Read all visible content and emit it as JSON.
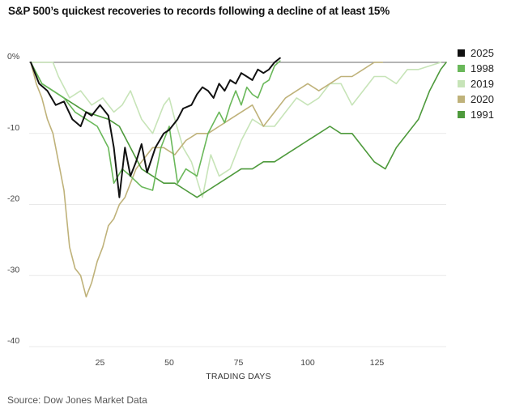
{
  "chart_data": {
    "type": "line",
    "title": "S&P 500’s quickest recoveries to records following a decline of at least 15%",
    "source": "Source: Dow Jones Market Data",
    "xlabel": "TRADING DAYS",
    "ylabel": "",
    "xlim": [
      0,
      150
    ],
    "ylim": [
      -40,
      0
    ],
    "x_ticks": [
      25,
      50,
      75,
      100,
      125
    ],
    "x_tick_labels": [
      "25",
      "50",
      "75",
      "100",
      "125"
    ],
    "y_ticks": [
      0,
      -10,
      -20,
      -30,
      -40
    ],
    "y_tick_labels": [
      "0%",
      "-10",
      "-20",
      "-30",
      "-40"
    ],
    "grid": true,
    "legend": "right",
    "series": [
      {
        "name": "2025",
        "color": "#111111",
        "x": [
          0,
          3,
          6,
          9,
          12,
          15,
          18,
          20,
          22,
          25,
          28,
          30,
          32,
          34,
          36,
          38,
          40,
          42,
          45,
          48,
          50,
          53,
          55,
          58,
          60,
          62,
          64,
          66,
          68,
          70,
          72,
          74,
          76,
          78,
          80,
          82,
          84,
          86,
          88,
          90
        ],
        "y": [
          0,
          -3,
          -4,
          -6,
          -5.5,
          -8,
          -9,
          -7,
          -7.5,
          -6,
          -7.5,
          -12,
          -19,
          -12,
          -16,
          -14,
          -11.5,
          -15.5,
          -12,
          -10,
          -9.5,
          -8,
          -6.5,
          -6,
          -4.5,
          -3.5,
          -4,
          -5,
          -3,
          -4,
          -2.5,
          -3,
          -1.5,
          -2,
          -2.5,
          -1,
          -1.5,
          -1,
          0,
          0.6
        ]
      },
      {
        "name": "1998",
        "color": "#6ab85a",
        "x": [
          0,
          4,
          8,
          12,
          16,
          20,
          24,
          28,
          30,
          33,
          36,
          40,
          44,
          47,
          50,
          53,
          56,
          60,
          64,
          68,
          70,
          72,
          74,
          76,
          78,
          80,
          82,
          84,
          86,
          88,
          90
        ],
        "y": [
          0,
          -3,
          -4,
          -5,
          -7,
          -8,
          -9,
          -12,
          -17,
          -15,
          -16,
          -17.5,
          -18,
          -12,
          -9,
          -17,
          -15,
          -16,
          -10,
          -7,
          -8.5,
          -6,
          -4,
          -6,
          -3.5,
          -4.5,
          -5,
          -3,
          -2.5,
          -0.5,
          0.2
        ]
      },
      {
        "name": "2019",
        "color": "#c7e4b8",
        "x": [
          0,
          4,
          8,
          10,
          14,
          18,
          22,
          26,
          30,
          33,
          36,
          40,
          44,
          48,
          50,
          52,
          55,
          58,
          62,
          65,
          68,
          72,
          76,
          80,
          84,
          88,
          92,
          96,
          100,
          104,
          108,
          112,
          116,
          120,
          124,
          128,
          132,
          136,
          140,
          144,
          148
        ],
        "y": [
          0,
          0,
          0,
          -2,
          -5,
          -4,
          -6,
          -5,
          -7,
          -6,
          -4,
          -8,
          -10,
          -6,
          -5,
          -8,
          -12,
          -14,
          -19,
          -13,
          -16,
          -15,
          -11,
          -8,
          -9,
          -9,
          -7,
          -5,
          -6,
          -5,
          -3,
          -3,
          -6,
          -4,
          -2,
          -2,
          -3,
          -1,
          -1,
          -0.5,
          0
        ]
      },
      {
        "name": "2020",
        "color": "#bfb27a",
        "x": [
          0,
          2,
          4,
          6,
          8,
          10,
          12,
          14,
          16,
          18,
          20,
          22,
          24,
          26,
          28,
          30,
          32,
          34,
          36,
          38,
          40,
          44,
          48,
          52,
          56,
          60,
          64,
          68,
          72,
          76,
          80,
          84,
          88,
          92,
          96,
          100,
          104,
          108,
          112,
          116,
          120,
          124,
          127
        ],
        "y": [
          0,
          -3,
          -5,
          -8,
          -10,
          -14,
          -18,
          -26,
          -29,
          -30,
          -33,
          -31,
          -28,
          -26,
          -23,
          -22,
          -20,
          -19,
          -17,
          -15,
          -14,
          -12,
          -12,
          -13,
          -11,
          -10,
          -10,
          -9,
          -8,
          -7,
          -6,
          -9,
          -7,
          -5,
          -4,
          -3,
          -4,
          -3,
          -2,
          -2,
          -1,
          0,
          0
        ]
      },
      {
        "name": "1991",
        "color": "#4e9a3c",
        "x": [
          0,
          4,
          8,
          12,
          16,
          20,
          24,
          28,
          32,
          36,
          40,
          44,
          48,
          52,
          56,
          60,
          64,
          68,
          72,
          76,
          80,
          84,
          88,
          92,
          96,
          100,
          104,
          108,
          112,
          116,
          120,
          124,
          128,
          132,
          136,
          140,
          144,
          148,
          150
        ],
        "y": [
          0,
          -3,
          -4,
          -5,
          -6,
          -7,
          -7.5,
          -8,
          -9,
          -12,
          -15,
          -16,
          -17,
          -17,
          -18,
          -19,
          -18,
          -17,
          -16,
          -15,
          -15,
          -14,
          -14,
          -13,
          -12,
          -11,
          -10,
          -9,
          -10,
          -10,
          -12,
          -14,
          -15,
          -12,
          -10,
          -8,
          -4,
          -1,
          0
        ]
      }
    ]
  }
}
